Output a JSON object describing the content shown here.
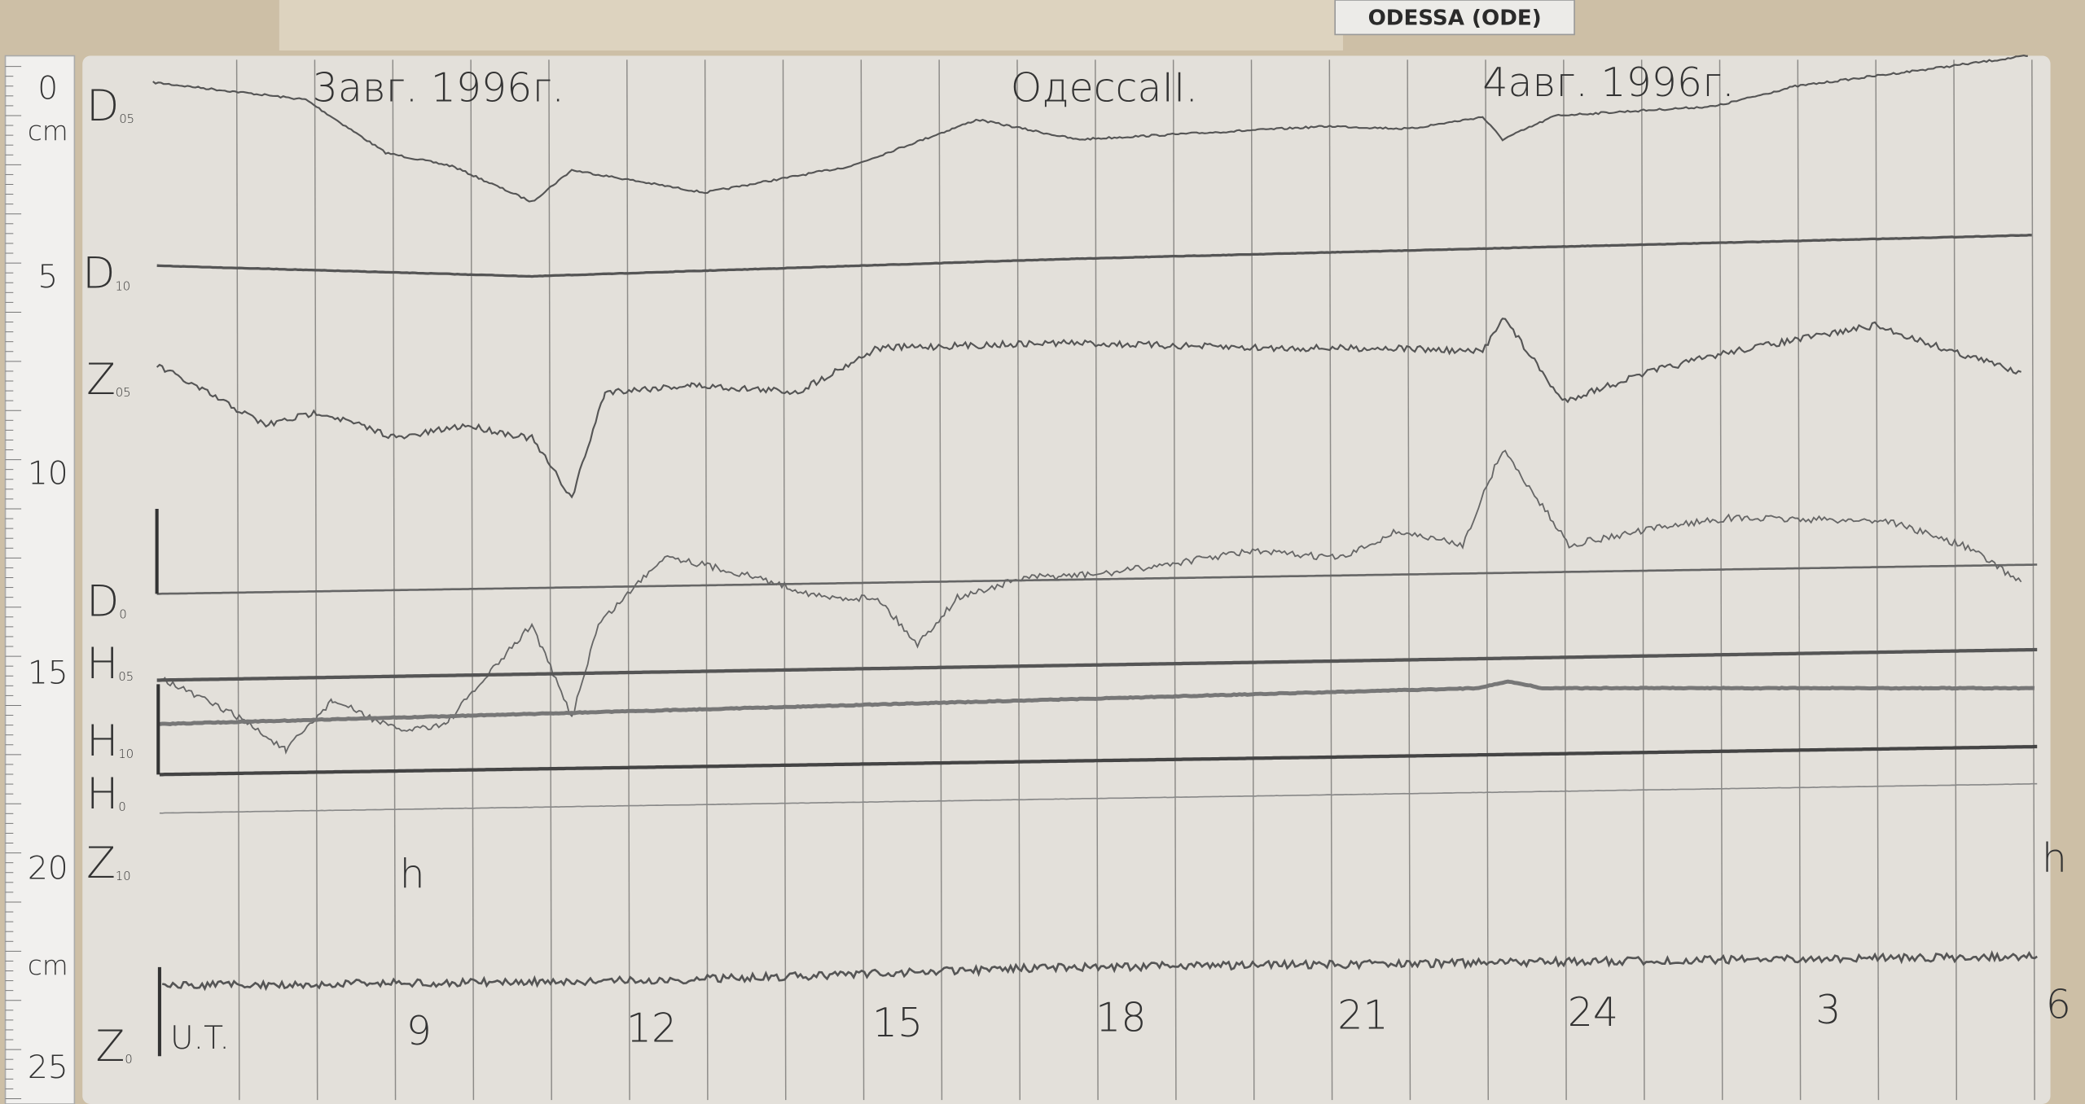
{
  "station_label": "ODESSA (ODE)",
  "header": {
    "left_date": "3авг. 1996г.",
    "station": "OдессаII.",
    "right_date": "4авг. 1996г."
  },
  "ruler": [
    "0",
    "cm",
    "5",
    "10",
    "15",
    "20",
    "cm",
    "25"
  ],
  "trace_labels": [
    {
      "letter": "D",
      "sub": "05"
    },
    {
      "letter": "D",
      "sub": "10"
    },
    {
      "letter": "Z",
      "sub": "05"
    },
    {
      "letter": "D",
      "sub": "0"
    },
    {
      "letter": "H",
      "sub": "05"
    },
    {
      "letter": "H",
      "sub": "10"
    },
    {
      "letter": "H",
      "sub": "0"
    },
    {
      "letter": "Z",
      "sub": "10"
    },
    {
      "letter": "Z",
      "sub": "0"
    }
  ],
  "time_axis": [
    "U.T.",
    "9",
    "12",
    "15",
    "18",
    "21",
    "24",
    "3",
    "6"
  ],
  "hour_marks": [
    "h",
    "h"
  ]
}
